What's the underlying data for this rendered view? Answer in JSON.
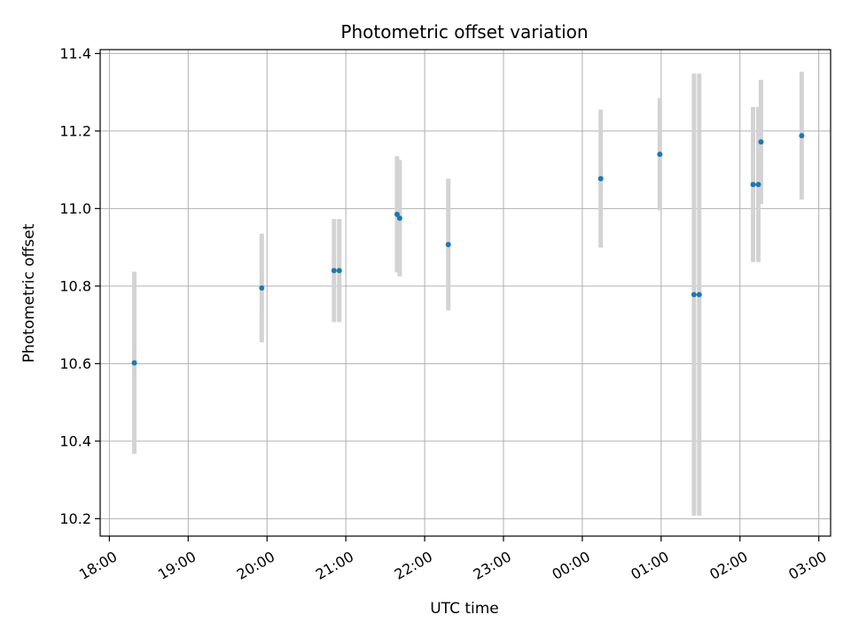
{
  "chart_data": {
    "type": "scatter",
    "title": "Photometric offset variation",
    "xlabel": "UTC time",
    "ylabel": "Photometric offset",
    "x_ticks": [
      "18:00",
      "19:00",
      "20:00",
      "21:00",
      "22:00",
      "23:00",
      "00:00",
      "01:00",
      "02:00",
      "03:00"
    ],
    "y_ticks": [
      "10.2",
      "10.4",
      "10.6",
      "10.8",
      "11.0",
      "11.2",
      "11.4"
    ],
    "xlim": [
      "17:53",
      "03:09"
    ],
    "ylim": [
      10.155,
      11.41
    ],
    "grid": true,
    "marker_color": "#1f77b4",
    "errorbar_color": "#d3d3d3",
    "series": [
      {
        "points": [
          {
            "x": "18:19",
            "y": 10.602,
            "err": 0.235
          },
          {
            "x": "19:56",
            "y": 10.795,
            "err": 0.14
          },
          {
            "x": "20:51",
            "y": 10.84,
            "err": 0.133
          },
          {
            "x": "20:55",
            "y": 10.84,
            "err": 0.133
          },
          {
            "x": "21:39",
            "y": 10.985,
            "err": 0.15
          },
          {
            "x": "21:41",
            "y": 10.975,
            "err": 0.15
          },
          {
            "x": "22:18",
            "y": 10.907,
            "err": 0.17
          },
          {
            "x": "00:14",
            "y": 11.077,
            "err": 0.178
          },
          {
            "x": "00:59",
            "y": 11.14,
            "err": 0.145
          },
          {
            "x": "01:25",
            "y": 10.778,
            "err": 0.57
          },
          {
            "x": "01:29",
            "y": 10.778,
            "err": 0.57
          },
          {
            "x": "02:10",
            "y": 11.062,
            "err": 0.2
          },
          {
            "x": "02:14",
            "y": 11.062,
            "err": 0.2
          },
          {
            "x": "02:16",
            "y": 11.172,
            "err": 0.16
          },
          {
            "x": "02:47",
            "y": 11.188,
            "err": 0.165
          }
        ]
      }
    ]
  }
}
